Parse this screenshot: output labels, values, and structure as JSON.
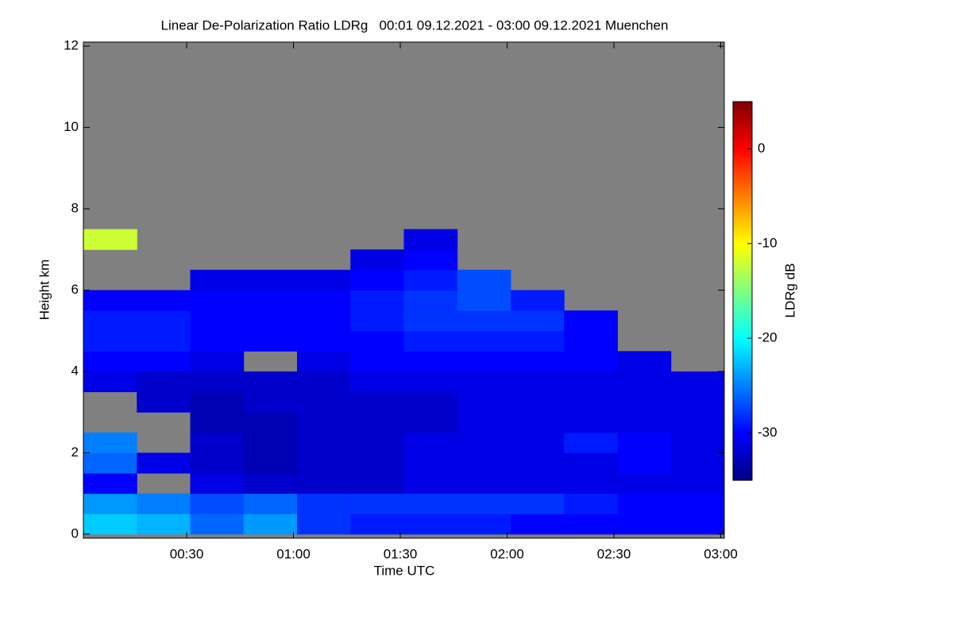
{
  "chart_data": {
    "type": "heatmap",
    "title": "Linear De-Polarization Ratio LDRg   00:01 09.12.2021 - 03:00 09.12.2021 Muenchen",
    "x_label": "Time UTC",
    "y_label": "Height km",
    "colorbar_label": "LDRg dB",
    "xlim": [
      1,
      181
    ],
    "ylim": [
      -0.1,
      12.1
    ],
    "xticks": [
      {
        "value": 30,
        "label": "00:30"
      },
      {
        "value": 60,
        "label": "01:00"
      },
      {
        "value": 90,
        "label": "01:30"
      },
      {
        "value": 120,
        "label": "02:00"
      },
      {
        "value": 150,
        "label": "02:30"
      },
      {
        "value": 180,
        "label": "03:00"
      }
    ],
    "yticks": [
      0,
      2,
      4,
      6,
      8,
      10,
      12
    ],
    "zlim": [
      -35,
      5
    ],
    "zticks": [
      0,
      -10,
      -20,
      -30
    ],
    "no_data_color": "#808080",
    "x_bins": [
      1,
      16,
      31,
      46,
      61,
      76,
      91,
      106,
      121,
      136,
      151,
      166,
      181
    ],
    "y_bins": [
      0,
      0.5,
      1,
      1.5,
      2,
      2.5,
      3,
      3.5,
      4,
      4.5,
      5,
      5.5,
      6,
      6.5,
      7,
      7.5
    ],
    "z": [
      [
        -22,
        -23,
        -26,
        -24,
        -28,
        -29,
        -29,
        -29,
        -30,
        -30,
        -30,
        -30
      ],
      [
        -24,
        -25,
        -27,
        -26,
        -28,
        -28,
        -28,
        -28,
        -28,
        -29,
        -30,
        -30
      ],
      [
        -30,
        null,
        -31,
        -32,
        -32,
        -32,
        -31,
        -31,
        -31,
        -31,
        -31,
        -31
      ],
      [
        -26,
        -31,
        -32,
        -33,
        -32,
        -32,
        -31,
        -31,
        -31,
        -31,
        -30,
        -31
      ],
      [
        -25,
        null,
        -32,
        -33,
        -32,
        -32,
        -31,
        -31,
        -31,
        -29,
        -30,
        -31
      ],
      [
        null,
        null,
        -33,
        -33,
        -32,
        -32,
        -32,
        -31,
        -31,
        -31,
        -31,
        -31
      ],
      [
        null,
        -32,
        -33,
        -32,
        -32,
        -32,
        -32,
        -31,
        -31,
        -31,
        -31,
        -31
      ],
      [
        -31,
        -32,
        -32,
        -32,
        -32,
        -31,
        -31,
        -31,
        -31,
        -31,
        -31,
        -31
      ],
      [
        -30,
        -30,
        -31,
        null,
        -31,
        -30,
        -30,
        -30,
        -30,
        -30,
        -31,
        null
      ],
      [
        -29,
        -29,
        -30,
        -30,
        -30,
        -30,
        -29,
        -29,
        -29,
        -30,
        null,
        null
      ],
      [
        -29,
        -29,
        -30,
        -30,
        -30,
        -29,
        -28,
        -28,
        -28,
        -30,
        null,
        null
      ],
      [
        -30,
        -30,
        -30,
        -30,
        -30,
        -29,
        -28,
        -27,
        -29,
        null,
        null,
        null
      ],
      [
        null,
        null,
        -31,
        -31,
        -31,
        -30,
        -29,
        -27,
        null,
        null,
        null,
        null
      ],
      [
        null,
        null,
        null,
        null,
        null,
        -31,
        -30,
        null,
        null,
        null,
        null,
        null
      ],
      [
        -12,
        null,
        null,
        null,
        null,
        null,
        -31,
        null,
        null,
        null,
        null,
        null
      ]
    ]
  }
}
